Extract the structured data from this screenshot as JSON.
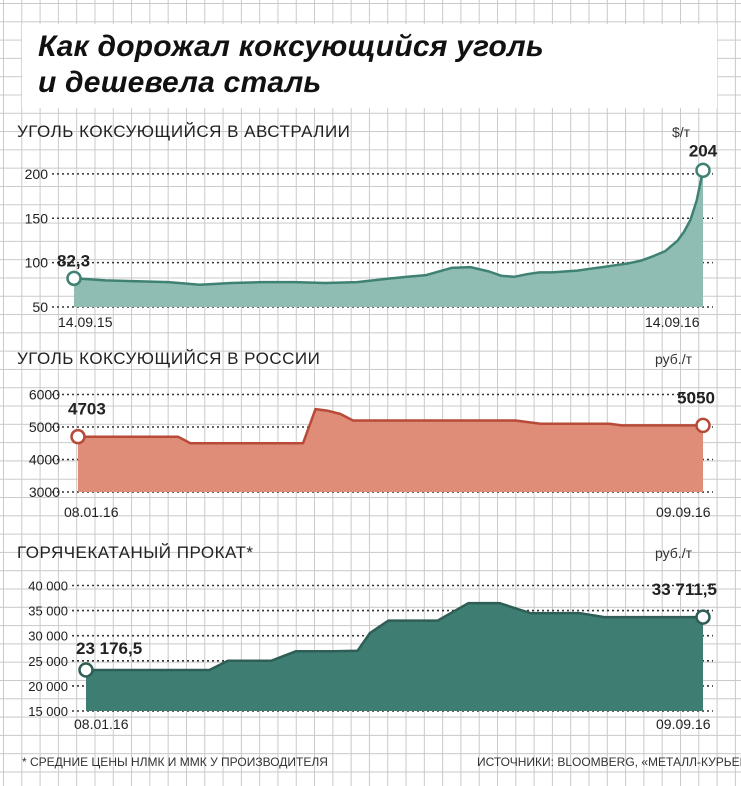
{
  "title": {
    "line1": "Как дорожал коксующийся уголь",
    "line2": "и дешевела сталь"
  },
  "footnote": "* СРЕДНИЕ ЦЕНЫ НЛМК И ММК У ПРОИЗВОДИТЕЛЯ",
  "sources": "ИСТОЧНИКИ: BLOOMBERG, «МЕТАЛЛ-КУРЬЕР»",
  "colors": {
    "australia": "#8fbdb3",
    "russia": "#df8c78",
    "rolled": "#3d7d72",
    "line_australia": "#3f8173",
    "line_russia": "#b84a38",
    "line_rolled": "#2f5e56"
  },
  "chart_data": [
    {
      "type": "area",
      "title": "УГОЛЬ КОКСУЮЩИЙСЯ В АВСТРАЛИИ",
      "unit": "$/т",
      "ylim": [
        50,
        210
      ],
      "yticks": [
        50,
        100,
        150,
        200
      ],
      "ytick_labels": [
        "50",
        "100",
        "150",
        "200"
      ],
      "date_start": "14.09.15",
      "date_end": "14.09.16",
      "start_label": "82,3",
      "end_label": "204",
      "x": [
        0,
        0.05,
        0.1,
        0.15,
        0.2,
        0.25,
        0.3,
        0.35,
        0.4,
        0.45,
        0.5,
        0.53,
        0.56,
        0.6,
        0.63,
        0.66,
        0.68,
        0.7,
        0.72,
        0.74,
        0.76,
        0.78,
        0.8,
        0.82,
        0.84,
        0.86,
        0.88,
        0.9,
        0.92,
        0.94,
        0.96,
        0.97,
        0.98,
        0.99,
        1.0
      ],
      "values": [
        82.3,
        80,
        79,
        78,
        75,
        77,
        78,
        78,
        77,
        78,
        82,
        84,
        86,
        94,
        95,
        90,
        85,
        84,
        87,
        89,
        89,
        90,
        91,
        93,
        95,
        97,
        99,
        102,
        107,
        113,
        125,
        135,
        148,
        170,
        204
      ]
    },
    {
      "type": "area",
      "title": "УГОЛЬ КОКСУЮЩИЙСЯ В РОССИИ",
      "unit": "руб./т",
      "ylim": [
        3000,
        6200
      ],
      "yticks": [
        3000,
        4000,
        5000,
        6000
      ],
      "ytick_labels": [
        "3000",
        "4000",
        "5000",
        "6000"
      ],
      "date_start": "08.01.16",
      "date_end": "09.09.16",
      "start_label": "4703",
      "end_label": "5050",
      "x": [
        0,
        0.15,
        0.16,
        0.17,
        0.18,
        0.36,
        0.38,
        0.4,
        0.42,
        0.44,
        0.7,
        0.72,
        0.74,
        0.85,
        0.87,
        1.0
      ],
      "values": [
        4703,
        4703,
        4703,
        4600,
        4500,
        4500,
        5550,
        5500,
        5400,
        5200,
        5200,
        5150,
        5100,
        5100,
        5050,
        5050
      ]
    },
    {
      "type": "area",
      "title": "ГОРЯЧЕКАТАНЫЙ ПРОКАТ*",
      "unit": "руб./т",
      "ylim": [
        15000,
        40500
      ],
      "yticks": [
        15000,
        20000,
        25000,
        30000,
        35000,
        40000
      ],
      "ytick_labels": [
        "15 000",
        "20 000",
        "25 000",
        "30 000",
        "35 000",
        "40 000"
      ],
      "date_start": "08.01.16",
      "date_end": "09.09.16",
      "start_label": "23 176,5",
      "end_label": "33 711,5",
      "x": [
        0,
        0.2,
        0.23,
        0.3,
        0.34,
        0.4,
        0.44,
        0.46,
        0.49,
        0.57,
        0.62,
        0.67,
        0.72,
        0.74,
        0.8,
        0.84,
        0.89,
        1.0
      ],
      "values": [
        23176.5,
        23176.5,
        25000,
        25000,
        26900,
        26900,
        27000,
        30500,
        33000,
        33000,
        36500,
        36500,
        34500,
        34500,
        34500,
        33711.5,
        33711.5,
        33711.5
      ]
    }
  ]
}
